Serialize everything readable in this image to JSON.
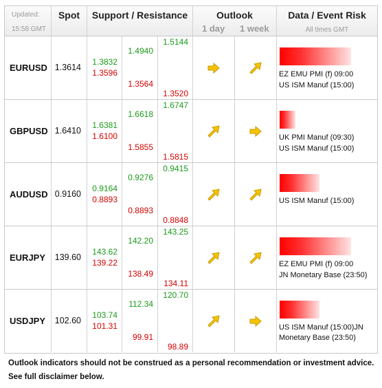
{
  "header": {
    "updated_label": "Updated:",
    "updated_time": "15:58 GMT",
    "spot": "Spot",
    "support_resistance": "Support / Resistance",
    "outlook": "Outlook",
    "outlook_1day": "1 day",
    "outlook_1week": "1 week",
    "data_event_risk": "Data / Event Risk",
    "all_times": "All times GMT"
  },
  "icons": {
    "right_arrow": "right-arrow-icon",
    "up_right_arrow": "up-right-arrow-icon"
  },
  "colors": {
    "support": "#1a9a1a",
    "resistance": "#d40000",
    "arrow_fill": "#f5c400",
    "risk_bar": "#ff0000"
  },
  "rows": [
    {
      "symbol": "EURUSD",
      "spot": "1.3614",
      "c1_g": "1.3832",
      "c1_r": "1.3596",
      "c2_g": "1.4940",
      "c2_r": "1.3564",
      "c3_g": "1.5144",
      "c3_r": "1.3520",
      "outlook_1day": "right",
      "outlook_1week": "up-right",
      "risk_level": 0.9,
      "event_1": "EZ EMU PMI (f) 09:00",
      "event_2": "US ISM Manuf (15:00)"
    },
    {
      "symbol": "GBPUSD",
      "spot": "1.6410",
      "c1_g": "1.6381",
      "c1_r": "1.6100",
      "c2_g": "1.6618",
      "c2_r": "1.5855",
      "c3_g": "1.6747",
      "c3_r": "1.5815",
      "outlook_1day": "up-right",
      "outlook_1week": "right",
      "risk_level": 0.2,
      "event_1": "UK PMI Manuf (09:30)",
      "event_2": "US ISM Manuf (15:00)"
    },
    {
      "symbol": "AUDUSD",
      "spot": "0.9160",
      "c1_g": "0.9164",
      "c1_r": "0.8893",
      "c2_g": "0.9276",
      "c2_r": "0.8893",
      "c3_g": "0.9415",
      "c3_r": "0.8848",
      "outlook_1day": "up-right",
      "outlook_1week": "up-right",
      "risk_level": 0.5,
      "event_1": "US ISM Manuf (15:00)",
      "event_2": ""
    },
    {
      "symbol": "EURJPY",
      "spot": "139.60",
      "c1_g": "143.62",
      "c1_r": "139.22",
      "c2_g": "142.20",
      "c2_r": "138.49",
      "c3_g": "143.25",
      "c3_r": "134.11",
      "outlook_1day": "up-right",
      "outlook_1week": "up-right",
      "risk_level": 0.9,
      "event_1": "EZ EMU PMI (f) 09:00",
      "event_2": "JN Monetary Base (23:50)"
    },
    {
      "symbol": "USDJPY",
      "spot": "102.60",
      "c1_g": "103.74",
      "c1_r": "101.31",
      "c2_g": "112.34",
      "c2_r": "99.91",
      "c3_g": "120.70",
      "c3_r": "98.89",
      "outlook_1day": "up-right",
      "outlook_1week": "right",
      "risk_level": 0.5,
      "event_1": "US ISM Manuf (15:00)JN Monetary Base (23:50)",
      "event_2": ""
    }
  ],
  "footer": {
    "line1": "Outlook indicators should not be construed as a personal recommendation or investment advice.",
    "line2": "See full disclaimer below."
  }
}
